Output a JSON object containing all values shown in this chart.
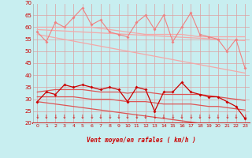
{
  "xlabel": "Vent moyen/en rafales ( km/h )",
  "bg_color": "#c8eef0",
  "grid_color": "#dda0a0",
  "upper_zigzag": [
    58,
    54,
    62,
    60,
    64,
    68,
    61,
    63,
    58,
    57,
    56,
    62,
    65,
    59,
    65,
    54,
    60,
    66,
    57,
    56,
    55,
    50,
    55,
    43
  ],
  "upper_trend1": [
    60,
    60,
    60,
    60,
    60,
    60,
    60,
    59.5,
    59,
    58.5,
    58,
    57.5,
    57,
    57,
    57,
    57,
    57,
    56.5,
    56,
    56,
    56,
    56,
    56,
    56
  ],
  "upper_trend2": [
    59,
    58.8,
    58.6,
    58.4,
    58.2,
    58,
    57.8,
    57.6,
    57.4,
    57.2,
    57,
    56.8,
    56.6,
    56.4,
    56.2,
    56,
    55.8,
    55.6,
    55.4,
    55.2,
    55,
    54.8,
    54.6,
    54.4
  ],
  "upper_trend3": [
    57,
    56.3,
    55.6,
    54.9,
    54.2,
    53.5,
    52.8,
    52.1,
    51.4,
    50.7,
    50,
    49.3,
    48.6,
    47.9,
    47.2,
    46.5,
    45.8,
    45.1,
    44.4,
    43.7,
    43,
    42.3,
    41.6,
    40.9
  ],
  "lower_zigzag": [
    29,
    33,
    32,
    36,
    35,
    36,
    35,
    34,
    35,
    34,
    29,
    35,
    34,
    25,
    33,
    33,
    37,
    33,
    32,
    31,
    31,
    29,
    27,
    22
  ],
  "lower_trend1": [
    33,
    33.5,
    34,
    34,
    34,
    34,
    33.5,
    33,
    33,
    33,
    32.5,
    33,
    33,
    32.5,
    32,
    32,
    32,
    32,
    32,
    31.5,
    31,
    30.5,
    30,
    29.5
  ],
  "lower_trend2": [
    31,
    31,
    31,
    31,
    31,
    30.5,
    30,
    30,
    30,
    29.5,
    29,
    29,
    29,
    28.5,
    28,
    28,
    28,
    28,
    27.5,
    27,
    27,
    26.5,
    26,
    25.5
  ],
  "lower_trend3": [
    29,
    28.5,
    28,
    27.5,
    27,
    26.5,
    26,
    25.5,
    25,
    24.5,
    24,
    23.5,
    23,
    22.5,
    22,
    21.5,
    21,
    20.5,
    20,
    19.5,
    19,
    18.5,
    18,
    17.5
  ],
  "upper_zigzag_color": "#f08080",
  "upper_trend_color": "#f4a8a8",
  "lower_zigzag_color": "#cc0000",
  "lower_trend_color": "#dd5555",
  "ylim": [
    20,
    70
  ],
  "yticks": [
    20,
    25,
    30,
    35,
    40,
    45,
    50,
    55,
    60,
    65,
    70
  ],
  "xticks": [
    0,
    1,
    2,
    3,
    4,
    5,
    6,
    7,
    8,
    9,
    10,
    11,
    12,
    13,
    14,
    15,
    16,
    17,
    18,
    19,
    20,
    21,
    22,
    23
  ]
}
